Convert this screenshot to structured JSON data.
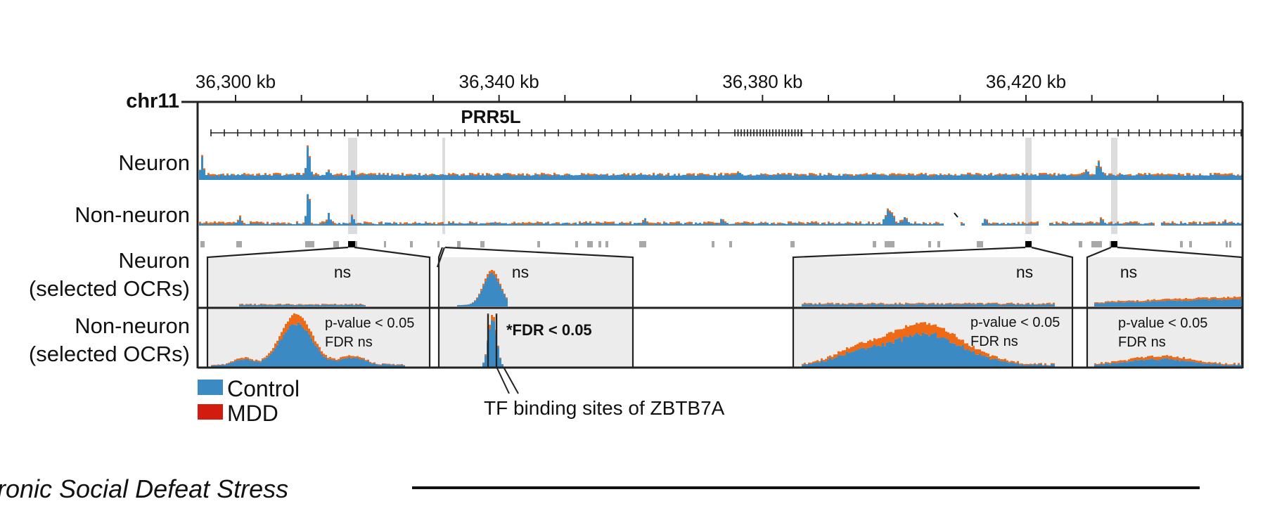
{
  "chart_data": {
    "type": "area",
    "genome": {
      "chromosome": "chr11",
      "gene": "PRR5L",
      "tick_labels": [
        "36,300 kb",
        "36,340 kb",
        "36,380 kb",
        "36,420 kb"
      ],
      "tick_positions_kb": [
        36300,
        36340,
        36380,
        36420
      ],
      "view_range_kb": [
        36293,
        36451
      ]
    },
    "tracks": [
      {
        "label": "Neuron"
      },
      {
        "label": "Non-neuron"
      },
      {
        "label_lines": [
          "Neuron",
          "(selected OCRs)"
        ]
      },
      {
        "label_lines": [
          "Non-neuron",
          "(selected OCRs)"
        ]
      }
    ],
    "selected_ocr_kb": [
      36317,
      36421,
      36434
    ],
    "zoom_panels": [
      {
        "id": "p1",
        "neuron": {
          "annotation": "ns"
        },
        "non_neuron": {
          "annotation_lines": [
            "p-value < 0.05",
            "FDR ns"
          ]
        }
      },
      {
        "id": "p2",
        "neuron": {
          "annotation": "ns"
        },
        "non_neuron": {
          "annotation_lines": [
            "*FDR < 0.05"
          ],
          "bold": true
        }
      },
      {
        "id": "p3",
        "neuron": {
          "annotation": "ns"
        },
        "non_neuron": {
          "annotation_lines": [
            "p-value < 0.05",
            "FDR ns"
          ]
        }
      },
      {
        "id": "p4",
        "neuron": {
          "annotation": "ns"
        },
        "non_neuron": {
          "annotation_lines": [
            "p-value < 0.05",
            "FDR ns"
          ]
        }
      }
    ],
    "legend": [
      {
        "name": "Control",
        "color": "#3b8ac4"
      },
      {
        "name": "MDD",
        "color": "#d21c10"
      }
    ],
    "tf_annotation": "TF binding sites of ZBTB7A"
  },
  "footer": {
    "caption": "ronic Social Defeat Stress"
  },
  "colors": {
    "control": "#3b8ac4",
    "mdd_overlay": "#f06a15",
    "panel_bg": "#ececec",
    "highlight": "#dcdcdc",
    "ocr_box": "#a8a8a8"
  }
}
